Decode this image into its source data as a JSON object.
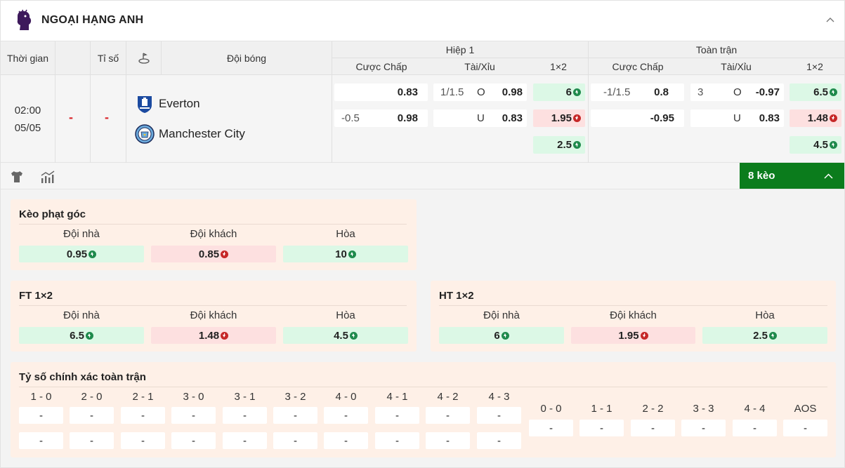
{
  "league": {
    "name": "NGOẠI HẠNG ANH"
  },
  "header": {
    "time": "Thời gian",
    "score": "Tỉ số",
    "teams": "Đội bóng",
    "half1": "Hiệp 1",
    "full": "Toàn trận",
    "handicap": "Cược Chấp",
    "overunder": "Tài/Xỉu",
    "onextwo": "1×2"
  },
  "match": {
    "time": "02:00",
    "date": "05/05",
    "score_home": "-",
    "score_away": "-",
    "home": "Everton",
    "away": "Manchester City",
    "h1": {
      "handicap": [
        {
          "line": "",
          "odd": "0.83"
        },
        {
          "line": "-0.5",
          "odd": "0.98"
        }
      ],
      "overunder": [
        {
          "line": "1/1.5",
          "side": "O",
          "odd": "0.98"
        },
        {
          "line": "",
          "side": "U",
          "odd": "0.83"
        }
      ],
      "onextwo": [
        {
          "odd": "6",
          "trend": "up"
        },
        {
          "odd": "1.95",
          "trend": "down"
        },
        {
          "odd": "2.5",
          "trend": "up"
        }
      ]
    },
    "ft": {
      "handicap": [
        {
          "line": "-1/1.5",
          "odd": "0.8"
        },
        {
          "line": "",
          "odd": "-0.95"
        }
      ],
      "overunder": [
        {
          "line": "3",
          "side": "O",
          "odd": "-0.97"
        },
        {
          "line": "",
          "side": "U",
          "odd": "0.83"
        }
      ],
      "onextwo": [
        {
          "odd": "6.5",
          "trend": "up"
        },
        {
          "odd": "1.48",
          "trend": "down"
        },
        {
          "odd": "4.5",
          "trend": "up"
        }
      ]
    }
  },
  "more_button": "8 kèo",
  "cards": {
    "corner": {
      "title": "Kèo phạt góc",
      "labels": [
        "Đội nhà",
        "Đội khách",
        "Hòa"
      ],
      "values": [
        "0.95",
        "0.85",
        "10"
      ]
    },
    "ft12": {
      "title": "FT 1×2",
      "labels": [
        "Đội nhà",
        "Đội khách",
        "Hòa"
      ],
      "values": [
        "6.5",
        "1.48",
        "4.5"
      ]
    },
    "ht12": {
      "title": "HT 1×2",
      "labels": [
        "Đội nhà",
        "Đội khách",
        "Hòa"
      ],
      "values": [
        "6",
        "1.95",
        "2.5"
      ]
    },
    "correct": {
      "title": "Tỷ số chính xác toàn trận",
      "home_scores": [
        "1 - 0",
        "2 - 0",
        "2 - 1",
        "3 - 0",
        "3 - 1",
        "3 - 2",
        "4 - 0",
        "4 - 1",
        "4 - 2",
        "4 - 3"
      ],
      "draw_scores": [
        "0 - 0",
        "1 - 1",
        "2 - 2",
        "3 - 3",
        "4 - 4",
        "AOS"
      ],
      "empty": "-"
    }
  },
  "colors": {
    "green_bg": "#dcf8e6",
    "red_bg": "#fde0e0",
    "accent": "#0b7c1c",
    "card": "#fef0e7"
  }
}
